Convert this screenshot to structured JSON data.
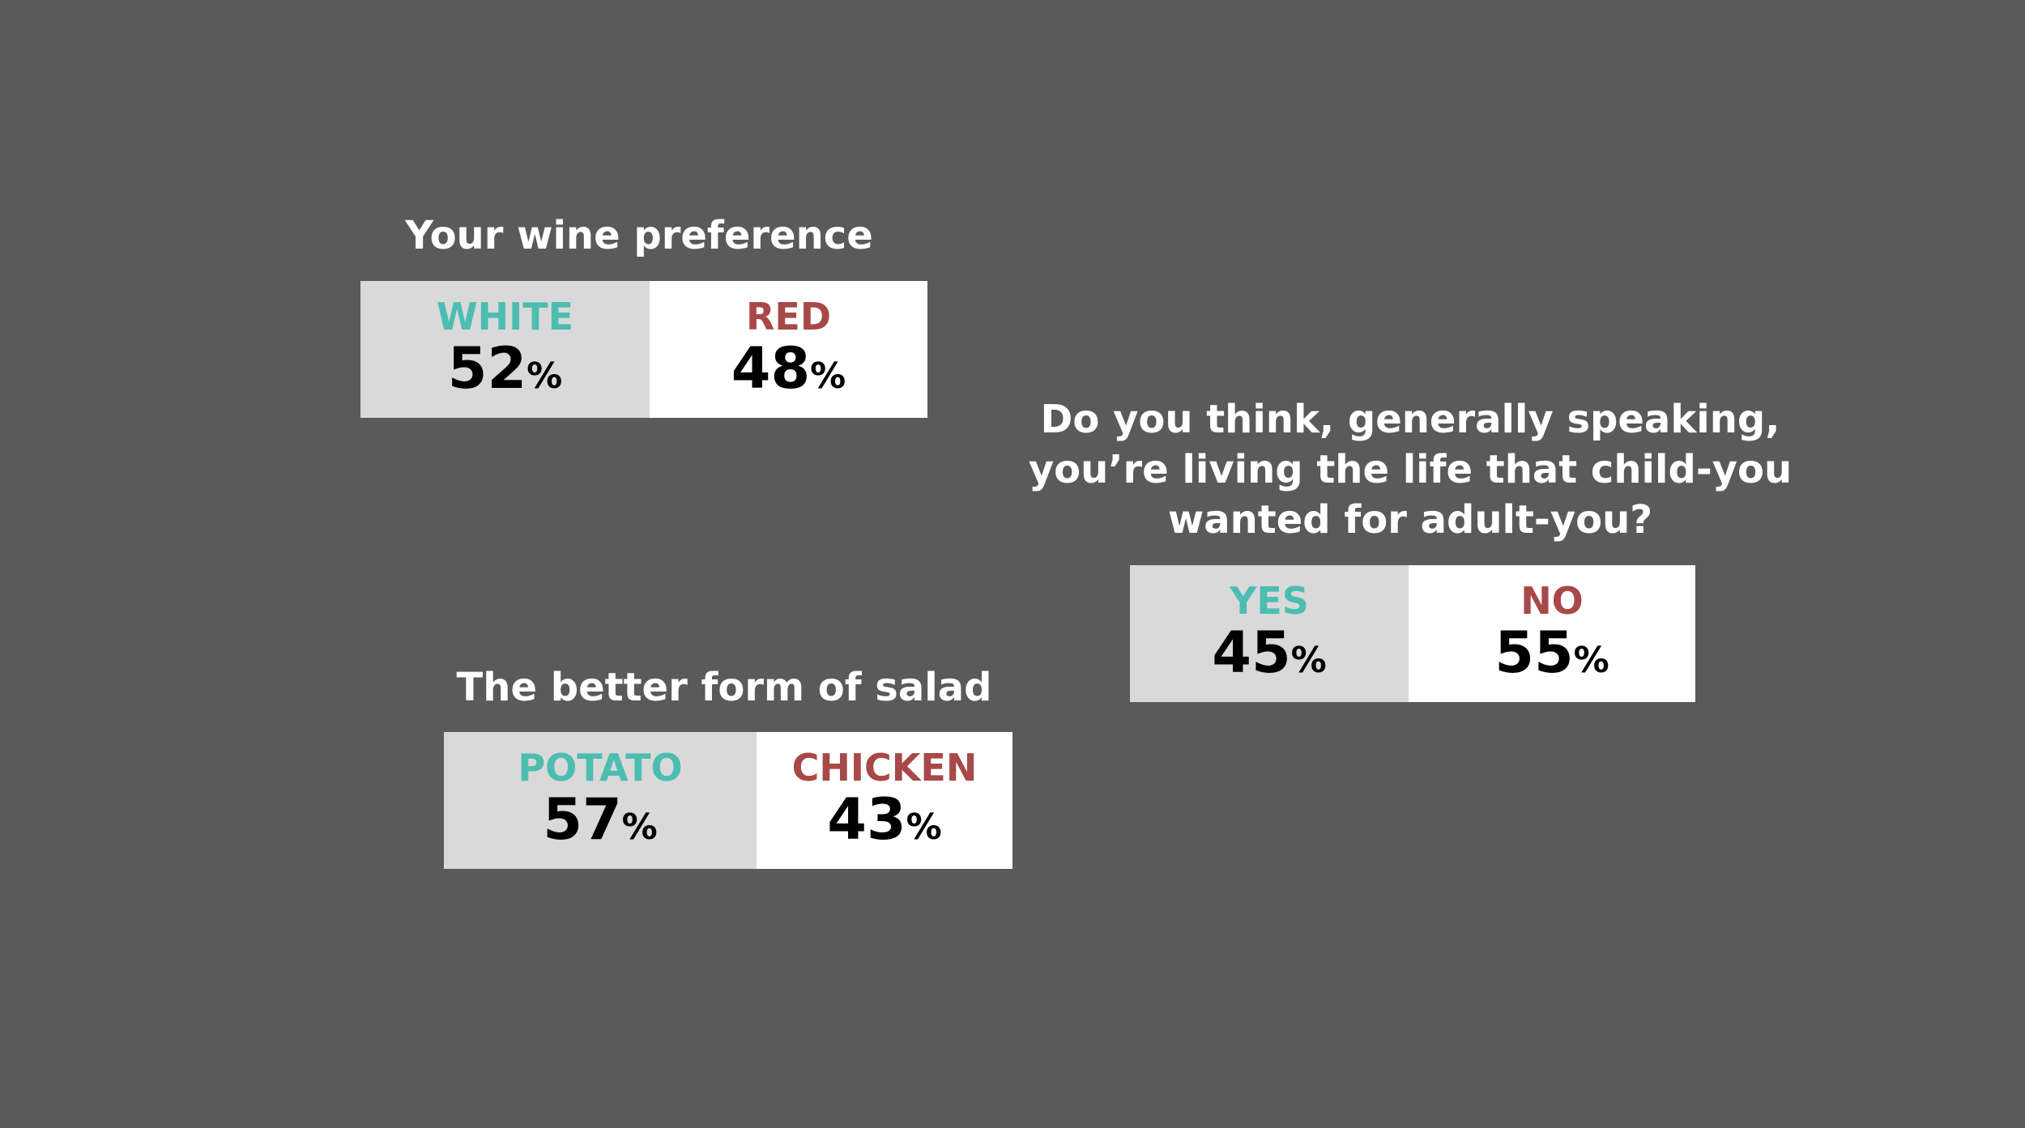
{
  "polls": [
    {
      "title_lines": [
        "Your wine preference"
      ],
      "options": [
        {
          "label": "WHITE",
          "value": 52,
          "unit": "%"
        },
        {
          "label": "RED",
          "value": 48,
          "unit": "%"
        }
      ]
    },
    {
      "title_lines": [
        "Do you think, generally speaking,",
        "you’re living the life that child-you",
        "wanted for adult-you?"
      ],
      "options": [
        {
          "label": "YES",
          "value": 45,
          "unit": "%"
        },
        {
          "label": "NO",
          "value": 55,
          "unit": "%"
        }
      ]
    },
    {
      "title_lines": [
        "The better form of salad"
      ],
      "options": [
        {
          "label": "POTATO",
          "value": 57,
          "unit": "%"
        },
        {
          "label": "CHICKEN",
          "value": 43,
          "unit": "%"
        }
      ]
    }
  ]
}
